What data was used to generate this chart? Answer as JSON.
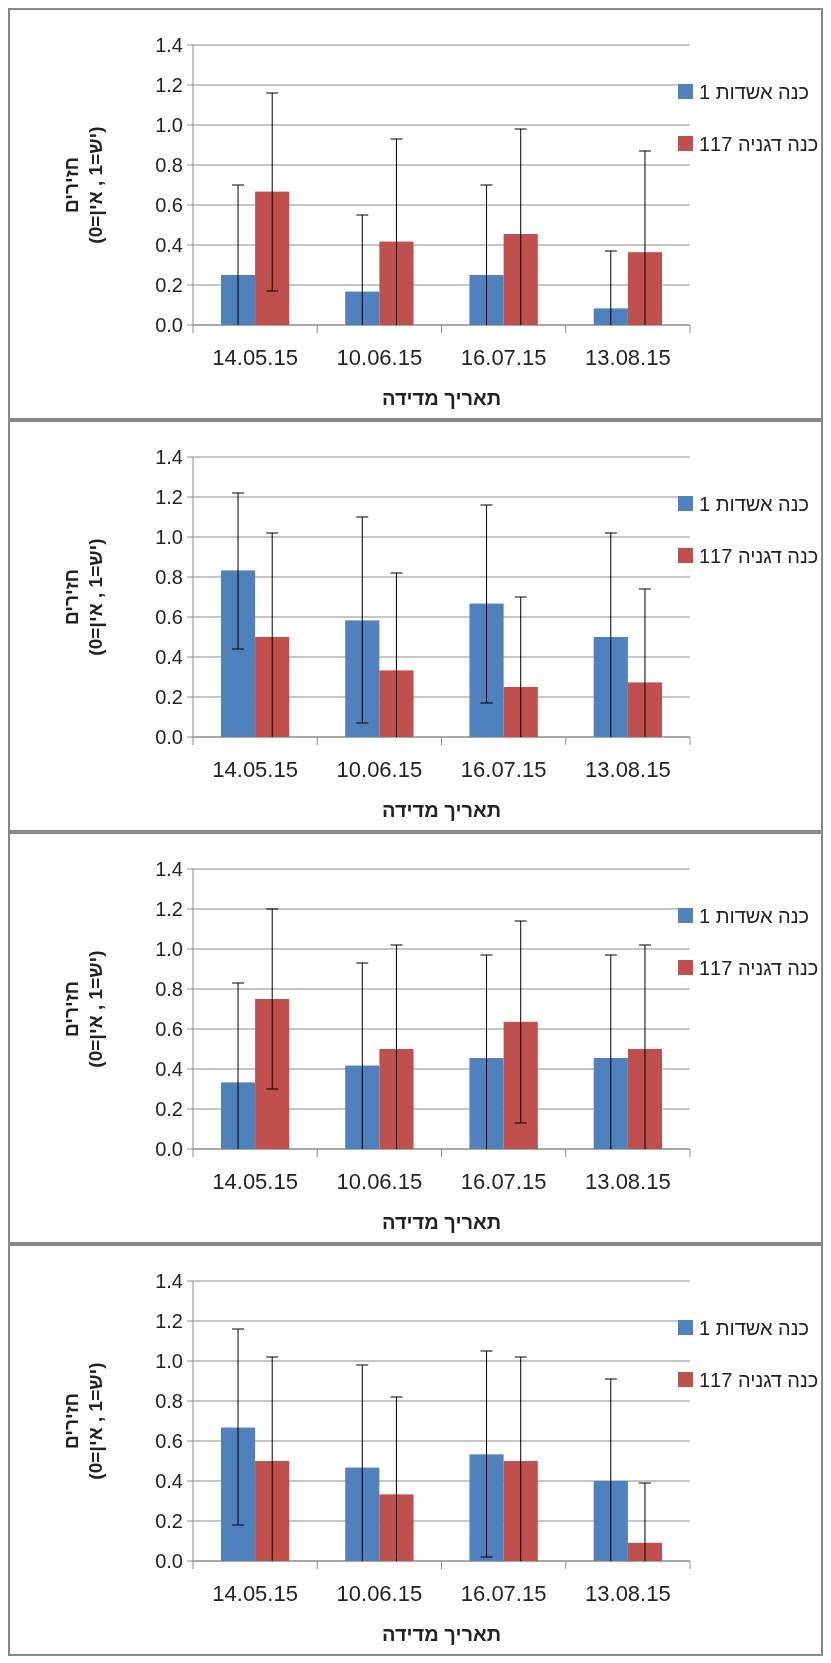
{
  "chart_data": [
    {
      "type": "bar",
      "categories": [
        "14.05.15",
        "10.06.15",
        "16.07.15",
        "13.08.15"
      ],
      "xlabel": "תאריך מדידה",
      "ylabel": "חזירים\n(יש=1 , אין=0)",
      "ylim": [
        0,
        1.4
      ],
      "yticks": [
        {
          "value": 0,
          "label": "0.0"
        },
        {
          "value": 0.2,
          "label": "0.2"
        },
        {
          "value": 0.4,
          "label": "0.4"
        },
        {
          "value": 0.6,
          "label": "0.6"
        },
        {
          "value": 0.8,
          "label": "0.8"
        },
        {
          "value": 1,
          "label": "1.0"
        },
        {
          "value": 1.2,
          "label": "1.2"
        },
        {
          "value": 1.4,
          "label": "1.4"
        }
      ],
      "grid": "y",
      "legend": "right",
      "series": [
        {
          "name": "כנה אשדות 1",
          "color": "#4f81bd",
          "values": [
            0.25,
            0.167,
            0.25,
            0.083
          ],
          "errors": [
            [
              0,
              0.7
            ],
            [
              0,
              0.55
            ],
            [
              0,
              0.7
            ],
            [
              0,
              0.37
            ]
          ]
        },
        {
          "name": "כנה דגניה 117",
          "color": "#c0504d",
          "values": [
            0.667,
            0.417,
            0.455,
            0.364
          ],
          "errors": [
            [
              0.17,
              1.16
            ],
            [
              0,
              0.93
            ],
            [
              0,
              0.98
            ],
            [
              0,
              0.87
            ]
          ]
        }
      ]
    },
    {
      "type": "bar",
      "categories": [
        "14.05.15",
        "10.06.15",
        "16.07.15",
        "13.08.15"
      ],
      "xlabel": "תאריך מדידה",
      "ylabel": "חזירים\n(יש=1 , אין=0)",
      "ylim": [
        0,
        1.4
      ],
      "yticks": [
        {
          "value": 0,
          "label": "0.0"
        },
        {
          "value": 0.2,
          "label": "0.2"
        },
        {
          "value": 0.4,
          "label": "0.4"
        },
        {
          "value": 0.6,
          "label": "0.6"
        },
        {
          "value": 0.8,
          "label": "0.8"
        },
        {
          "value": 1,
          "label": "1.0"
        },
        {
          "value": 1.2,
          "label": "1.2"
        },
        {
          "value": 1.4,
          "label": "1.4"
        }
      ],
      "grid": "y",
      "legend": "right",
      "series": [
        {
          "name": "כנה אשדות 1",
          "color": "#4f81bd",
          "values": [
            0.833,
            0.583,
            0.667,
            0.5
          ],
          "errors": [
            [
              0.44,
              1.22
            ],
            [
              0.07,
              1.1
            ],
            [
              0.17,
              1.16
            ],
            [
              0,
              1.02
            ]
          ]
        },
        {
          "name": "כנה דגניה 117",
          "color": "#c0504d",
          "values": [
            0.5,
            0.333,
            0.25,
            0.273
          ],
          "errors": [
            [
              0,
              1.02
            ],
            [
              0,
              0.82
            ],
            [
              0,
              0.7
            ],
            [
              0,
              0.74
            ]
          ]
        }
      ]
    },
    {
      "type": "bar",
      "categories": [
        "14.05.15",
        "10.06.15",
        "16.07.15",
        "13.08.15"
      ],
      "xlabel": "תאריך מדידה",
      "ylabel": "חזירים\n(יש=1 , אין=0)",
      "ylim": [
        0,
        1.4
      ],
      "yticks": [
        {
          "value": 0,
          "label": "0.0"
        },
        {
          "value": 0.2,
          "label": "0.2"
        },
        {
          "value": 0.4,
          "label": "0.4"
        },
        {
          "value": 0.6,
          "label": "0.6"
        },
        {
          "value": 0.8,
          "label": "0.8"
        },
        {
          "value": 1,
          "label": "1.0"
        },
        {
          "value": 1.2,
          "label": "1.2"
        },
        {
          "value": 1.4,
          "label": "1.4"
        }
      ],
      "grid": "y",
      "legend": "right",
      "series": [
        {
          "name": "כנה אשדות 1",
          "color": "#4f81bd",
          "values": [
            0.333,
            0.417,
            0.455,
            0.455
          ],
          "errors": [
            [
              0,
              0.83
            ],
            [
              0,
              0.93
            ],
            [
              0,
              0.97
            ],
            [
              0,
              0.97
            ]
          ]
        },
        {
          "name": "כנה דגניה 117",
          "color": "#c0504d",
          "values": [
            0.75,
            0.5,
            0.636,
            0.5
          ],
          "errors": [
            [
              0.3,
              1.2
            ],
            [
              0,
              1.02
            ],
            [
              0.13,
              1.14
            ],
            [
              0,
              1.02
            ]
          ]
        }
      ]
    },
    {
      "type": "bar",
      "categories": [
        "14.05.15",
        "10.06.15",
        "16.07.15",
        "13.08.15"
      ],
      "xlabel": "תאריך מדידה",
      "ylabel": "חזירים\n(יש=1 , אין=0)",
      "ylim": [
        0,
        1.4
      ],
      "yticks": [
        {
          "value": 0,
          "label": "0.0"
        },
        {
          "value": 0.2,
          "label": "0.2"
        },
        {
          "value": 0.4,
          "label": "0.4"
        },
        {
          "value": 0.6,
          "label": "0.6"
        },
        {
          "value": 0.8,
          "label": "0.8"
        },
        {
          "value": 1,
          "label": "1.0"
        },
        {
          "value": 1.2,
          "label": "1.2"
        },
        {
          "value": 1.4,
          "label": "1.4"
        }
      ],
      "grid": "y",
      "legend": "right",
      "series": [
        {
          "name": "כנה אשדות 1",
          "color": "#4f81bd",
          "values": [
            0.667,
            0.467,
            0.533,
            0.4
          ],
          "errors": [
            [
              0.18,
              1.16
            ],
            [
              0,
              0.98
            ],
            [
              0.02,
              1.05
            ],
            [
              0,
              0.91
            ]
          ]
        },
        {
          "name": "כנה דגניה 117",
          "color": "#c0504d",
          "values": [
            0.5,
            0.333,
            0.5,
            0.091
          ],
          "errors": [
            [
              0,
              1.02
            ],
            [
              0,
              0.82
            ],
            [
              0,
              1.02
            ],
            [
              0,
              0.39
            ]
          ]
        }
      ]
    }
  ]
}
